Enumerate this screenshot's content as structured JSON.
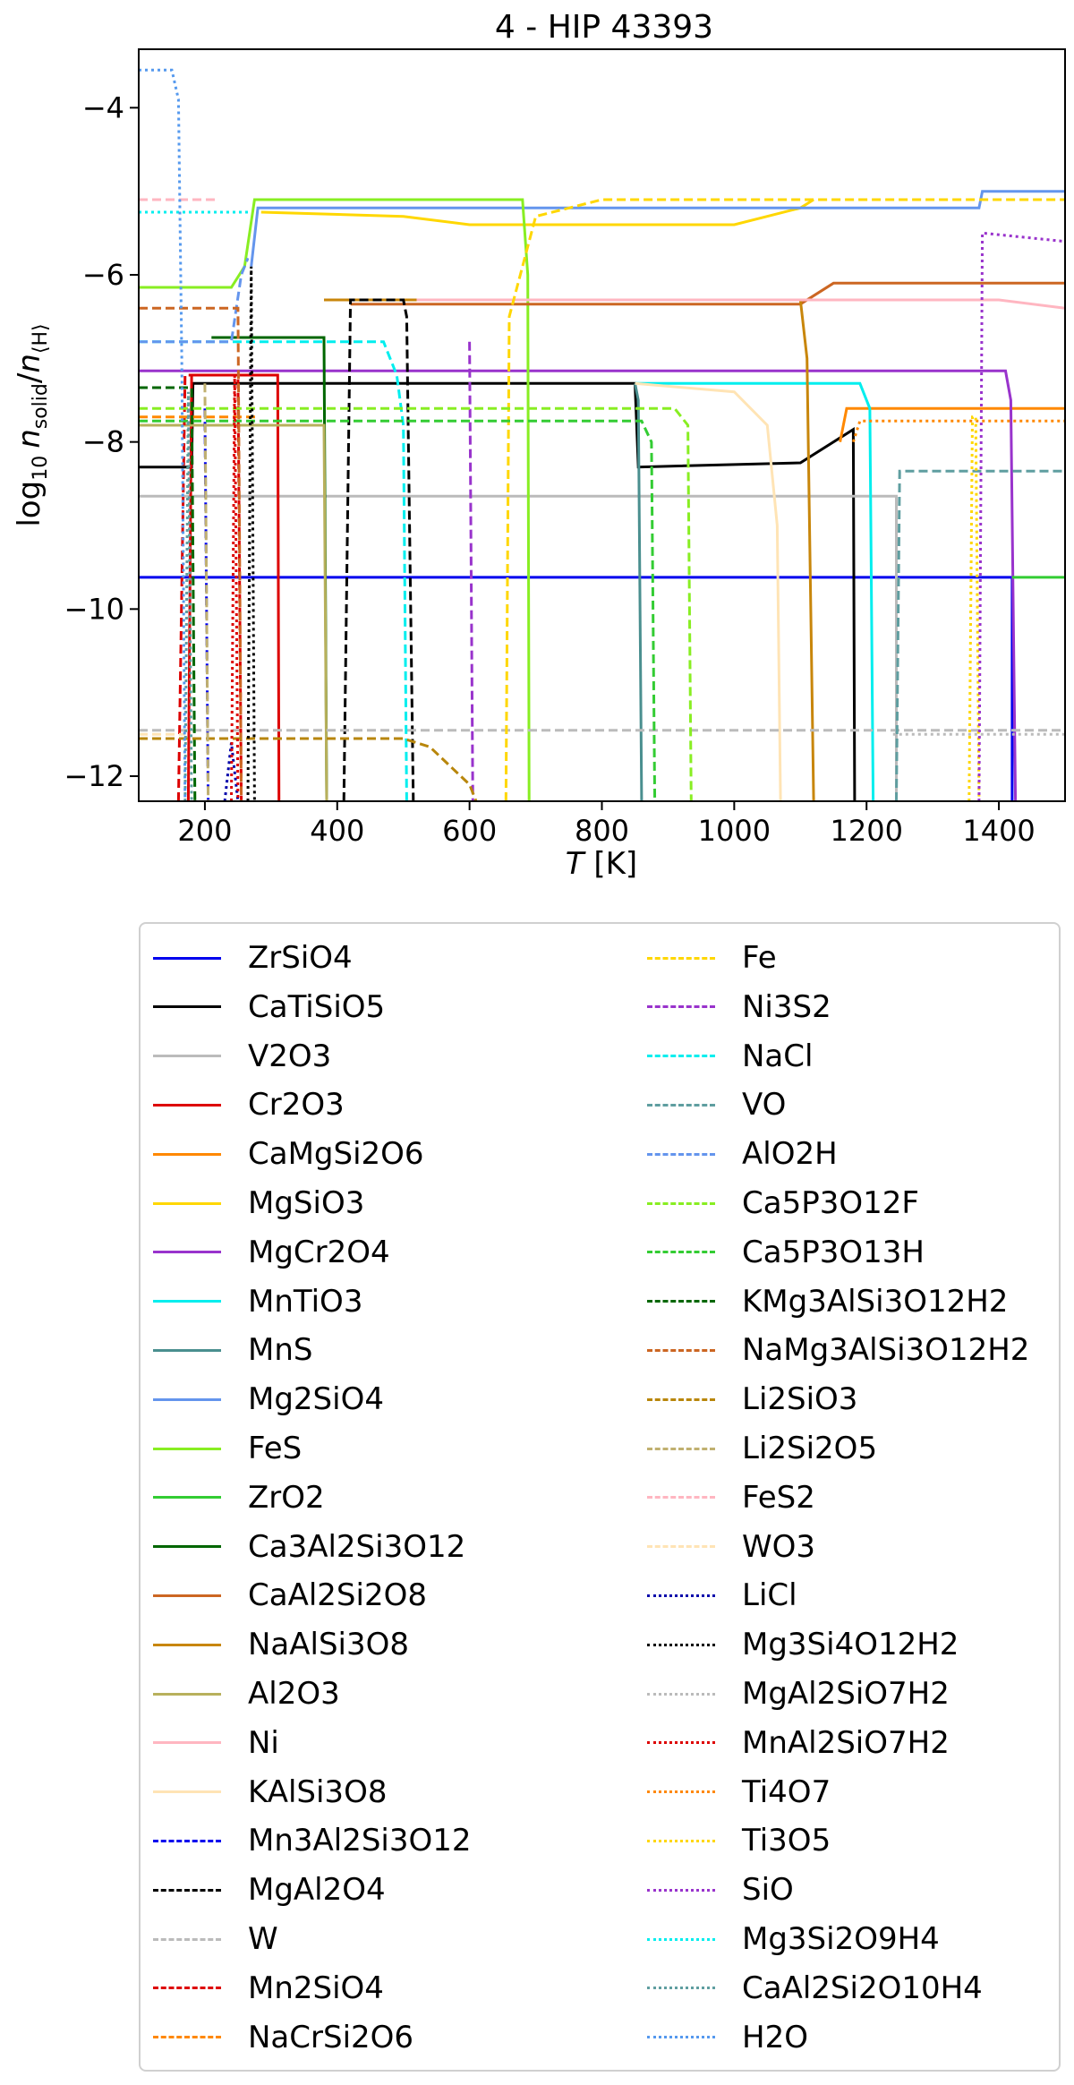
{
  "chart_data": {
    "type": "line",
    "title": "4 - HIP 43393",
    "xlabel_parts": {
      "var": "T",
      "unit": " [K]"
    },
    "ylabel_parts": {
      "pre": "log",
      "pre_sub": "10",
      "n1": "n",
      "n1_sub": "solid",
      "slash": "/",
      "n2": "n",
      "n2_sub": "⟨H⟩"
    },
    "xlim": [
      100,
      1500
    ],
    "ylim": [
      -12.3,
      -3.3
    ],
    "xticks": [
      200,
      400,
      600,
      800,
      1000,
      1200,
      1400
    ],
    "yticks": [
      -4,
      -6,
      -8,
      -10,
      -12
    ],
    "ytick_labels": [
      "−4",
      "−6",
      "−8",
      "−10",
      "−12"
    ],
    "grid": false,
    "legend_position": "below",
    "series": [
      {
        "name": "ZrSiO4",
        "color": "#0000ee",
        "style": "solid",
        "x": [
          100,
          1420,
          1420
        ],
        "y": [
          -9.62,
          -9.62,
          -12.3
        ]
      },
      {
        "name": "CaTiSiO5",
        "color": "#000000",
        "style": "solid",
        "x": [
          100,
          180,
          182,
          300,
          850,
          855,
          1100,
          1180,
          1182
        ],
        "y": [
          -8.3,
          -8.3,
          -7.3,
          -7.3,
          -7.3,
          -8.3,
          -8.25,
          -7.85,
          -12.3
        ]
      },
      {
        "name": "V2O3",
        "color": "#bbbbbb",
        "style": "solid",
        "x": [
          100,
          1245,
          1245
        ],
        "y": [
          -8.65,
          -8.65,
          -12.3
        ]
      },
      {
        "name": "Cr2O3",
        "color": "#dd0000",
        "style": "solid",
        "x": [
          175,
          180,
          310,
          312
        ],
        "y": [
          -12.3,
          -7.2,
          -7.2,
          -12.3
        ]
      },
      {
        "name": "CaMgSi2O6",
        "color": "#ff8800",
        "style": "solid",
        "x": [
          1160,
          1170,
          1500
        ],
        "y": [
          -8.0,
          -7.6,
          -7.6
        ]
      },
      {
        "name": "MgSiO3",
        "color": "#ffd700",
        "style": "solid",
        "x": [
          285,
          500,
          600,
          1000,
          1100,
          1120
        ],
        "y": [
          -5.25,
          -5.3,
          -5.4,
          -5.4,
          -5.2,
          -5.1
        ]
      },
      {
        "name": "MgCr2O4",
        "color": "#9933cc",
        "style": "solid",
        "x": [
          100,
          1410,
          1418,
          1425
        ],
        "y": [
          -7.15,
          -7.15,
          -7.5,
          -12.3
        ]
      },
      {
        "name": "MnTiO3",
        "color": "#00eeee",
        "style": "solid",
        "x": [
          850,
          1190,
          1205,
          1210
        ],
        "y": [
          -7.3,
          -7.3,
          -7.6,
          -12.3
        ]
      },
      {
        "name": "MnS",
        "color": "#4a8f8f",
        "style": "solid",
        "x": [
          850,
          855,
          860
        ],
        "y": [
          -7.3,
          -7.5,
          -12.3
        ]
      },
      {
        "name": "Mg2SiO4",
        "color": "#6495ed",
        "style": "solid",
        "x": [
          270,
          280,
          1370,
          1375,
          1500
        ],
        "y": [
          -5.9,
          -5.2,
          -5.2,
          -5.0,
          -5.0
        ]
      },
      {
        "name": "FeS",
        "color": "#88ee22",
        "style": "solid",
        "x": [
          100,
          240,
          260,
          275,
          680,
          688,
          690
        ],
        "y": [
          -6.15,
          -6.15,
          -5.9,
          -5.1,
          -5.1,
          -6.0,
          -12.3
        ]
      },
      {
        "name": "ZrO2",
        "color": "#33cc33",
        "style": "solid",
        "x": [
          1420,
          1500
        ],
        "y": [
          -9.62,
          -9.62
        ]
      },
      {
        "name": "Ca3Al2Si3O12",
        "color": "#006600",
        "style": "solid",
        "x": [
          210,
          380,
          384
        ],
        "y": [
          -6.75,
          -6.75,
          -12.3
        ]
      },
      {
        "name": "CaAl2Si2O8",
        "color": "#cc6622",
        "style": "solid",
        "x": [
          420,
          1100,
          1150,
          1500
        ],
        "y": [
          -6.35,
          -6.35,
          -6.1,
          -6.1
        ]
      },
      {
        "name": "NaAlSi3O8",
        "color": "#c8860b",
        "style": "solid",
        "x": [
          380,
          1100,
          1110,
          1120
        ],
        "y": [
          -6.3,
          -6.3,
          -7.0,
          -12.3
        ]
      },
      {
        "name": "Al2O3",
        "color": "#b8b05c",
        "style": "solid",
        "x": [
          100,
          380,
          384
        ],
        "y": [
          -7.8,
          -7.8,
          -12.3
        ]
      },
      {
        "name": "Ni",
        "color": "#ffb6c1",
        "style": "solid",
        "x": [
          520,
          1400,
          1500
        ],
        "y": [
          -6.3,
          -6.3,
          -6.4
        ]
      },
      {
        "name": "KAlSi3O8",
        "color": "#ffe4b5",
        "style": "solid",
        "x": [
          850,
          1000,
          1050,
          1065,
          1070
        ],
        "y": [
          -7.3,
          -7.4,
          -7.8,
          -9.0,
          -12.3
        ]
      },
      {
        "name": "Mn3Al2Si3O12",
        "color": "#0000ee",
        "style": "dashed",
        "x": [
          200,
          205
        ],
        "y": [
          -7.6,
          -12.3
        ]
      },
      {
        "name": "MgAl2O4",
        "color": "#000000",
        "style": "dashed",
        "x": [
          410,
          420,
          500,
          505,
          515
        ],
        "y": [
          -12.3,
          -6.3,
          -6.3,
          -6.5,
          -12.3
        ]
      },
      {
        "name": "W",
        "color": "#bbbbbb",
        "style": "dashed",
        "x": [
          100,
          1500
        ],
        "y": [
          -11.45,
          -11.45
        ]
      },
      {
        "name": "Mn2SiO4",
        "color": "#dd0000",
        "style": "dashed",
        "x": [
          160,
          170,
          250,
          255
        ],
        "y": [
          -12.3,
          -7.2,
          -7.2,
          -12.3
        ]
      },
      {
        "name": "NaCrSi2O6",
        "color": "#ff8800",
        "style": "dashed",
        "x": [
          100,
          280
        ],
        "y": [
          -7.7,
          -7.7
        ]
      },
      {
        "name": "Fe",
        "color": "#ffd700",
        "style": "dashed",
        "x": [
          655,
          660,
          700,
          800,
          1500
        ],
        "y": [
          -12.3,
          -6.5,
          -5.3,
          -5.1,
          -5.1
        ]
      },
      {
        "name": "Ni3S2",
        "color": "#9933cc",
        "style": "dashed",
        "x": [
          600,
          605,
          610
        ],
        "y": [
          -6.8,
          -12.3,
          -12.3
        ]
      },
      {
        "name": "NaCl",
        "color": "#00eeee",
        "style": "dashed",
        "x": [
          100,
          470,
          490,
          500,
          505
        ],
        "y": [
          -6.8,
          -6.8,
          -7.2,
          -7.8,
          -12.3
        ]
      },
      {
        "name": "VO",
        "color": "#5f9ea0",
        "style": "dashed",
        "x": [
          1245,
          1250,
          1500
        ],
        "y": [
          -12.3,
          -8.35,
          -8.35
        ]
      },
      {
        "name": "AlO2H",
        "color": "#6495ed",
        "style": "dashed",
        "x": [
          100,
          240,
          255,
          265
        ],
        "y": [
          -6.8,
          -6.8,
          -6.0,
          -5.8
        ]
      },
      {
        "name": "Ca5P3O12F",
        "color": "#88ee22",
        "style": "dashed",
        "x": [
          100,
          910,
          930,
          935
        ],
        "y": [
          -7.6,
          -7.6,
          -7.8,
          -12.3
        ]
      },
      {
        "name": "Ca5P3O13H",
        "color": "#33cc33",
        "style": "dashed",
        "x": [
          100,
          860,
          875,
          880
        ],
        "y": [
          -7.75,
          -7.75,
          -8.0,
          -12.3
        ]
      },
      {
        "name": "KMg3AlSi3O12H2",
        "color": "#006600",
        "style": "dashed",
        "x": [
          100,
          180,
          185
        ],
        "y": [
          -7.35,
          -7.35,
          -12.3
        ]
      },
      {
        "name": "NaMg3AlSi3O12H2",
        "color": "#cc6622",
        "style": "dashed",
        "x": [
          100,
          250,
          255
        ],
        "y": [
          -6.4,
          -6.4,
          -12.3
        ]
      },
      {
        "name": "Li2SiO3",
        "color": "#b8860b",
        "style": "dashed",
        "x": [
          100,
          500,
          540,
          600,
          610
        ],
        "y": [
          -11.55,
          -11.55,
          -11.65,
          -12.1,
          -12.3
        ]
      },
      {
        "name": "Li2Si2O5",
        "color": "#c0b070",
        "style": "dashed",
        "x": [
          200,
          205
        ],
        "y": [
          -7.3,
          -12.3
        ]
      },
      {
        "name": "FeS2",
        "color": "#ffb6c1",
        "style": "dashed",
        "x": [
          100,
          220
        ],
        "y": [
          -5.1,
          -5.1
        ]
      },
      {
        "name": "WO3",
        "color": "#ffe4b5",
        "style": "dashed",
        "x": [
          100,
          170
        ],
        "y": [
          -11.5,
          -11.5
        ]
      },
      {
        "name": "LiCl",
        "color": "#0000aa",
        "style": "dotted",
        "x": [
          230,
          240,
          250
        ],
        "y": [
          -12.3,
          -11.6,
          -12.3
        ]
      },
      {
        "name": "Mg3Si4O12H2",
        "color": "#000000",
        "style": "dotted",
        "x": [
          265,
          270,
          275
        ],
        "y": [
          -12.3,
          -5.9,
          -12.3
        ]
      },
      {
        "name": "MgAl2SiO7H2",
        "color": "#bbbbbb",
        "style": "dotted",
        "x": [
          1240,
          1500
        ],
        "y": [
          -11.5,
          -11.5
        ]
      },
      {
        "name": "MnAl2SiO7H2",
        "color": "#dd0000",
        "style": "dotted",
        "x": [
          240,
          245,
          250
        ],
        "y": [
          -12.3,
          -7.2,
          -12.3
        ]
      },
      {
        "name": "Ti4O7",
        "color": "#ff8800",
        "style": "dotted",
        "x": [
          1180,
          1190,
          1500
        ],
        "y": [
          -8.0,
          -7.75,
          -7.75
        ]
      },
      {
        "name": "Ti3O5",
        "color": "#ffd700",
        "style": "dotted",
        "x": [
          1355,
          1360,
          1365,
          1370
        ],
        "y": [
          -12.3,
          -7.7,
          -7.7,
          -12.3
        ]
      },
      {
        "name": "SiO",
        "color": "#9933cc",
        "style": "dotted",
        "x": [
          1370,
          1375,
          1500
        ],
        "y": [
          -12.3,
          -5.5,
          -5.6
        ]
      },
      {
        "name": "Mg3Si2O9H4",
        "color": "#00eeee",
        "style": "dotted",
        "x": [
          100,
          270
        ],
        "y": [
          -5.25,
          -5.25
        ]
      },
      {
        "name": "CaAl2Si2O10H4",
        "color": "#5f9ea0",
        "style": "dotted",
        "x": [
          170,
          175,
          180
        ],
        "y": [
          -12.3,
          -7.4,
          -12.3
        ]
      },
      {
        "name": "H2O",
        "color": "#5599ee",
        "style": "dotted",
        "x": [
          100,
          150,
          160,
          165,
          170
        ],
        "y": [
          -3.55,
          -3.55,
          -3.9,
          -7.0,
          -12.3
        ]
      }
    ]
  }
}
